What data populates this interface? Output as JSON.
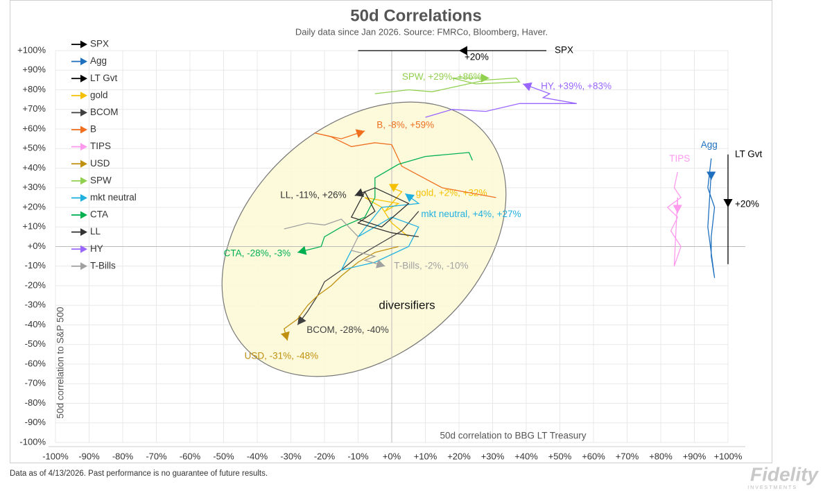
{
  "chart_data": {
    "type": "trail",
    "title": "50d Correlations",
    "subtitle": "Daily data since Jan 2026.  Source: FMRCo, Bloomberg, Haver.",
    "x_label": "50d correlation to BBG LT Treasury",
    "y_label": "50d correlation to S&P 500",
    "annotation": "diversifiers",
    "footnote": "Data as of 4/13/2026. Past performance is no guarantee of future results.",
    "logo": "Fidelity",
    "logo_sub": "INVESTMENTS",
    "grid": true,
    "xlim": [
      -100,
      100
    ],
    "ylim": [
      -100,
      100
    ],
    "xticks": [
      {
        "value": -100,
        "label": "-100%"
      },
      {
        "value": -90,
        "label": "-90%"
      },
      {
        "value": -80,
        "label": "-80%"
      },
      {
        "value": -70,
        "label": "-70%"
      },
      {
        "value": -60,
        "label": "-60%"
      },
      {
        "value": -50,
        "label": "-50%"
      },
      {
        "value": -40,
        "label": "-40%"
      },
      {
        "value": -30,
        "label": "-30%"
      },
      {
        "value": -20,
        "label": "-20%"
      },
      {
        "value": -10,
        "label": "-10%"
      },
      {
        "value": 0,
        "label": "+0%"
      },
      {
        "value": 10,
        "label": "+10%"
      },
      {
        "value": 20,
        "label": "+20%"
      },
      {
        "value": 30,
        "label": "+30%"
      },
      {
        "value": 40,
        "label": "+40%"
      },
      {
        "value": 50,
        "label": "+50%"
      },
      {
        "value": 60,
        "label": "+60%"
      },
      {
        "value": 70,
        "label": "+70%"
      },
      {
        "value": 80,
        "label": "+80%"
      },
      {
        "value": 90,
        "label": "+90%"
      },
      {
        "value": 100,
        "label": "+100%"
      }
    ],
    "yticks": [
      {
        "value": -100,
        "label": "-100%"
      },
      {
        "value": -90,
        "label": "-90%"
      },
      {
        "value": -80,
        "label": "-80%"
      },
      {
        "value": -70,
        "label": "-70%"
      },
      {
        "value": -60,
        "label": "-60%"
      },
      {
        "value": -50,
        "label": "-50%"
      },
      {
        "value": -40,
        "label": "-40%"
      },
      {
        "value": -30,
        "label": "-30%"
      },
      {
        "value": -20,
        "label": "-20%"
      },
      {
        "value": -10,
        "label": "-10%"
      },
      {
        "value": 0,
        "label": "+0%"
      },
      {
        "value": 10,
        "label": "+10%"
      },
      {
        "value": 20,
        "label": "+20%"
      },
      {
        "value": 30,
        "label": "+30%"
      },
      {
        "value": 40,
        "label": "+40%"
      },
      {
        "value": 50,
        "label": "+50%"
      },
      {
        "value": 60,
        "label": "+60%"
      },
      {
        "value": 70,
        "label": "+70%"
      },
      {
        "value": 80,
        "label": "+80%"
      },
      {
        "value": 90,
        "label": "+90%"
      },
      {
        "value": 100,
        "label": "+100%"
      }
    ],
    "series": [
      {
        "name": "SPX",
        "color": "#000000",
        "x": [
          -10,
          46,
          20
        ],
        "y": [
          100,
          100,
          100
        ],
        "end_label": "+20%"
      },
      {
        "name": "Agg",
        "color": "#1f6fbf",
        "x": [
          95,
          94,
          96,
          95,
          95,
          96,
          94,
          95,
          95
        ],
        "y": [
          45,
          30,
          20,
          5,
          -5,
          -16,
          10,
          38,
          34
        ]
      },
      {
        "name": "LT Gvt",
        "color": "#000000",
        "x": [
          100,
          100,
          100
        ],
        "y": [
          -9,
          47,
          20
        ],
        "end_label": "+20%"
      },
      {
        "name": "gold",
        "color": "#f5c000",
        "x": [
          5,
          0,
          -3,
          -8,
          2,
          -2,
          3,
          0,
          2
        ],
        "y": [
          5,
          12,
          20,
          25,
          22,
          18,
          28,
          30,
          32
        ],
        "end_label": "gold, +2%, +32%"
      },
      {
        "name": "BCOM",
        "color": "#404040",
        "x": [
          8,
          3,
          -5,
          -10,
          -15,
          -20,
          -22,
          -25,
          -28
        ],
        "y": [
          18,
          8,
          0,
          -5,
          -12,
          -18,
          -25,
          -33,
          -40
        ],
        "end_label": "BCOM, -28%, -40%"
      },
      {
        "name": "B",
        "color": "#f07020",
        "x": [
          31,
          15,
          3,
          0,
          -5,
          -12,
          -18,
          -23,
          -15,
          -8
        ],
        "y": [
          25,
          30,
          41,
          52,
          53,
          51,
          56,
          58,
          55,
          59
        ],
        "end_label": "B, -8%, +59%"
      },
      {
        "name": "TIPS",
        "color": "#ff99ee",
        "x": [
          85,
          84,
          86,
          82,
          85,
          83,
          86,
          85,
          84,
          85,
          85
        ],
        "y": [
          38,
          30,
          25,
          20,
          15,
          8,
          0,
          -5,
          -10,
          25,
          17
        ]
      },
      {
        "name": "USD",
        "color": "#c09010",
        "x": [
          2,
          -5,
          -10,
          -15,
          -18,
          -22,
          -25,
          -28,
          -32,
          -31
        ],
        "y": [
          0,
          -3,
          -8,
          -15,
          -20,
          -25,
          -30,
          -37,
          -42,
          -48
        ],
        "end_label": "USD, -31%, -48%"
      },
      {
        "name": "SPW",
        "color": "#92d050",
        "x": [
          -5,
          5,
          12,
          20,
          28,
          37,
          38,
          25,
          18,
          29
        ],
        "y": [
          78,
          80,
          79,
          82,
          85,
          86,
          84,
          83,
          86,
          86
        ],
        "end_label": "SPW, +29%, +86%"
      },
      {
        "name": "mkt neutral",
        "color": "#20b0e0",
        "x": [
          -12,
          -15,
          -5,
          5,
          8,
          0,
          -10,
          -3,
          8,
          4
        ],
        "y": [
          -2,
          -12,
          -8,
          0,
          10,
          15,
          5,
          20,
          22,
          27
        ],
        "end_label": "mkt neutral, +4%, +27%"
      },
      {
        "name": "CTA",
        "color": "#00b050",
        "x": [
          24,
          23,
          10,
          2,
          -5,
          -5,
          -8,
          -15,
          -20,
          -21,
          -28
        ],
        "y": [
          44,
          48,
          46,
          42,
          35,
          25,
          15,
          10,
          5,
          0,
          -3
        ],
        "end_label": "CTA, -28%, -3%"
      },
      {
        "name": "LL",
        "color": "#333333",
        "x": [
          8,
          0,
          -10,
          -5,
          -8,
          -12,
          -3,
          5,
          -5,
          -11
        ],
        "y": [
          5,
          7,
          12,
          18,
          28,
          15,
          10,
          22,
          30,
          26
        ],
        "end_label": "LL, -11%, +26%"
      },
      {
        "name": "HY",
        "color": "#9966ff",
        "x": [
          10,
          18,
          28,
          38,
          55,
          45,
          47,
          39
        ],
        "y": [
          66,
          70,
          69,
          73,
          73,
          76,
          78,
          83
        ],
        "end_label": "HY, +39%, +83%"
      },
      {
        "name": "T-Bills",
        "color": "#a0a0a0",
        "x": [
          -32,
          -25,
          -20,
          -15,
          -10,
          -12,
          -5,
          -8,
          -2
        ],
        "y": [
          9,
          12,
          11,
          14,
          5,
          -2,
          -5,
          -7,
          -10
        ],
        "end_label": "T-Bills, -2%, -10%"
      }
    ]
  }
}
